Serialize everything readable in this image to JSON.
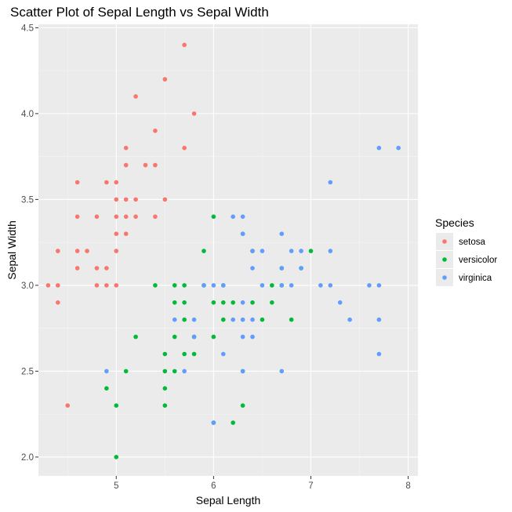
{
  "chart_data": {
    "type": "scatter",
    "title": "Scatter Plot of Sepal Length vs Sepal Width",
    "xlabel": "Sepal Length",
    "ylabel": "Sepal Width",
    "xlim": [
      4.2,
      8.1
    ],
    "ylim": [
      1.89,
      4.52
    ],
    "x_ticks": [
      "5",
      "6",
      "7",
      "8"
    ],
    "x_tick_values": [
      5,
      6,
      7,
      8
    ],
    "y_ticks": [
      "2.0",
      "2.5",
      "3.0",
      "3.5",
      "4.0",
      "4.5"
    ],
    "y_tick_values": [
      2.0,
      2.5,
      3.0,
      3.5,
      4.0,
      4.5
    ],
    "grid": true,
    "legend": {
      "title": "Species",
      "position": "right"
    },
    "series": [
      {
        "name": "setosa",
        "color": "#F8766D",
        "points": [
          [
            4.3,
            3.0
          ],
          [
            4.4,
            2.9
          ],
          [
            4.4,
            3.0
          ],
          [
            4.4,
            3.2
          ],
          [
            4.5,
            2.3
          ],
          [
            4.6,
            3.1
          ],
          [
            4.6,
            3.2
          ],
          [
            4.6,
            3.4
          ],
          [
            4.6,
            3.6
          ],
          [
            4.7,
            3.2
          ],
          [
            4.8,
            3.0
          ],
          [
            4.8,
            3.1
          ],
          [
            4.8,
            3.4
          ],
          [
            4.9,
            3.0
          ],
          [
            4.9,
            3.1
          ],
          [
            4.9,
            3.6
          ],
          [
            5.0,
            3.0
          ],
          [
            5.0,
            3.2
          ],
          [
            5.0,
            3.3
          ],
          [
            5.0,
            3.4
          ],
          [
            5.0,
            3.5
          ],
          [
            5.0,
            3.6
          ],
          [
            5.1,
            3.3
          ],
          [
            5.1,
            3.4
          ],
          [
            5.1,
            3.5
          ],
          [
            5.1,
            3.7
          ],
          [
            5.1,
            3.8
          ],
          [
            5.2,
            3.4
          ],
          [
            5.2,
            3.5
          ],
          [
            5.2,
            4.1
          ],
          [
            5.3,
            3.7
          ],
          [
            5.4,
            3.4
          ],
          [
            5.4,
            3.7
          ],
          [
            5.4,
            3.9
          ],
          [
            5.5,
            3.5
          ],
          [
            5.5,
            4.2
          ],
          [
            5.7,
            3.8
          ],
          [
            5.7,
            4.4
          ],
          [
            5.8,
            4.0
          ]
        ]
      },
      {
        "name": "versicolor",
        "color": "#00BA38",
        "points": [
          [
            4.9,
            2.4
          ],
          [
            5.0,
            2.0
          ],
          [
            5.0,
            2.3
          ],
          [
            5.1,
            2.5
          ],
          [
            5.2,
            2.7
          ],
          [
            5.4,
            3.0
          ],
          [
            5.5,
            2.3
          ],
          [
            5.5,
            2.4
          ],
          [
            5.5,
            2.5
          ],
          [
            5.5,
            2.6
          ],
          [
            5.6,
            2.5
          ],
          [
            5.6,
            2.7
          ],
          [
            5.6,
            2.9
          ],
          [
            5.6,
            3.0
          ],
          [
            5.7,
            2.6
          ],
          [
            5.7,
            2.8
          ],
          [
            5.7,
            2.9
          ],
          [
            5.7,
            3.0
          ],
          [
            5.8,
            2.6
          ],
          [
            5.8,
            2.7
          ],
          [
            5.9,
            3.0
          ],
          [
            5.9,
            3.2
          ],
          [
            6.0,
            2.2
          ],
          [
            6.0,
            2.7
          ],
          [
            6.0,
            2.9
          ],
          [
            6.0,
            3.4
          ],
          [
            6.1,
            2.8
          ],
          [
            6.1,
            2.9
          ],
          [
            6.1,
            3.0
          ],
          [
            6.2,
            2.2
          ],
          [
            6.2,
            2.9
          ],
          [
            6.3,
            2.3
          ],
          [
            6.3,
            2.5
          ],
          [
            6.3,
            3.3
          ],
          [
            6.4,
            2.9
          ],
          [
            6.4,
            3.2
          ],
          [
            6.5,
            2.8
          ],
          [
            6.6,
            2.9
          ],
          [
            6.6,
            3.0
          ],
          [
            6.7,
            3.0
          ],
          [
            6.7,
            3.1
          ],
          [
            6.8,
            2.8
          ],
          [
            6.9,
            3.1
          ],
          [
            7.0,
            3.2
          ]
        ]
      },
      {
        "name": "virginica",
        "color": "#619CFF",
        "points": [
          [
            4.9,
            2.5
          ],
          [
            5.6,
            2.8
          ],
          [
            5.7,
            2.5
          ],
          [
            5.8,
            2.7
          ],
          [
            5.8,
            2.8
          ],
          [
            5.9,
            3.0
          ],
          [
            6.0,
            2.2
          ],
          [
            6.0,
            3.0
          ],
          [
            6.1,
            2.6
          ],
          [
            6.1,
            3.0
          ],
          [
            6.2,
            2.8
          ],
          [
            6.2,
            3.4
          ],
          [
            6.3,
            2.5
          ],
          [
            6.3,
            2.7
          ],
          [
            6.3,
            2.8
          ],
          [
            6.3,
            2.9
          ],
          [
            6.3,
            3.3
          ],
          [
            6.3,
            3.4
          ],
          [
            6.4,
            2.7
          ],
          [
            6.4,
            2.8
          ],
          [
            6.4,
            3.1
          ],
          [
            6.4,
            3.2
          ],
          [
            6.5,
            3.0
          ],
          [
            6.5,
            3.2
          ],
          [
            6.7,
            2.5
          ],
          [
            6.7,
            3.0
          ],
          [
            6.7,
            3.1
          ],
          [
            6.7,
            3.3
          ],
          [
            6.8,
            3.0
          ],
          [
            6.8,
            3.2
          ],
          [
            6.9,
            3.1
          ],
          [
            6.9,
            3.2
          ],
          [
            7.1,
            3.0
          ],
          [
            7.2,
            3.0
          ],
          [
            7.2,
            3.2
          ],
          [
            7.2,
            3.6
          ],
          [
            7.3,
            2.9
          ],
          [
            7.4,
            2.8
          ],
          [
            7.6,
            3.0
          ],
          [
            7.7,
            2.6
          ],
          [
            7.7,
            2.8
          ],
          [
            7.7,
            3.0
          ],
          [
            7.7,
            3.8
          ],
          [
            7.9,
            3.8
          ]
        ]
      }
    ]
  }
}
